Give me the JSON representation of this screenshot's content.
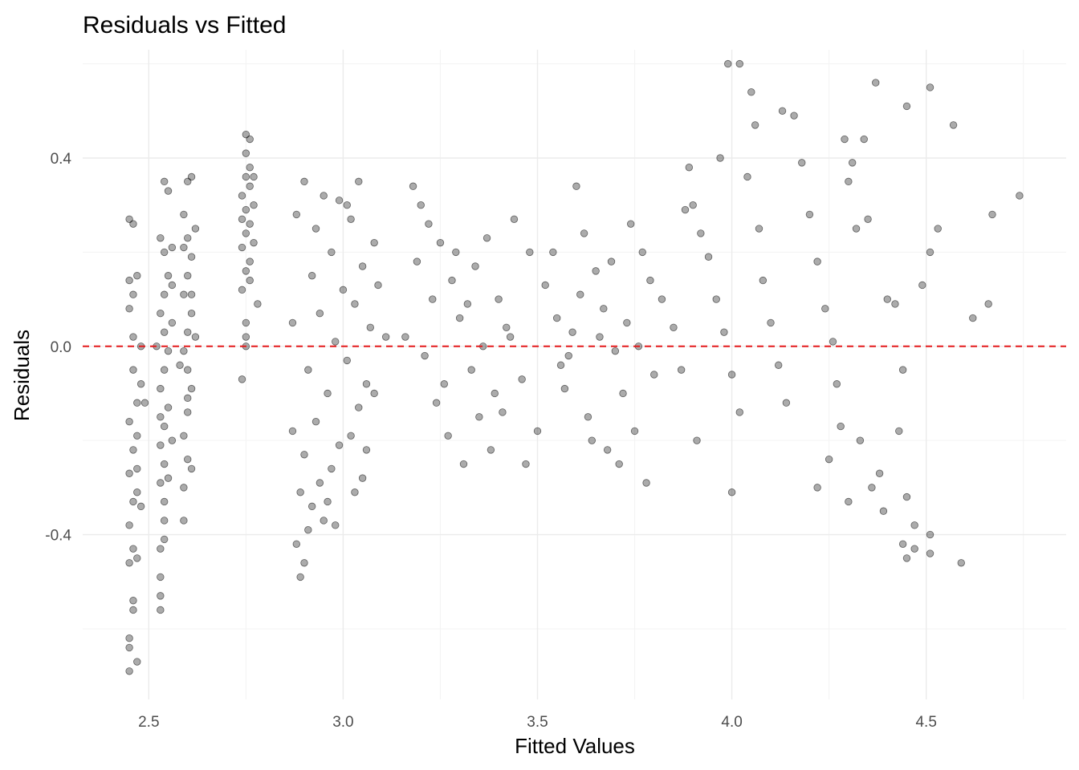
{
  "chart_data": {
    "type": "scatter",
    "title": "Residuals vs Fitted",
    "xlabel": "Fitted Values",
    "ylabel": "Residuals",
    "xlim": [
      2.33,
      4.86
    ],
    "ylim": [
      -0.75,
      0.63
    ],
    "x_ticks": [
      2.5,
      3.0,
      3.5,
      4.0,
      4.5
    ],
    "x_tick_labels": [
      "2.5",
      "3.0",
      "3.5",
      "4.0",
      "4.5"
    ],
    "y_ticks": [
      -0.4,
      0.0,
      0.4
    ],
    "y_tick_labels": [
      "-0.4",
      "0.0",
      "0.4"
    ],
    "grid": true,
    "reference_line": {
      "y": 0,
      "color": "#e41a1c",
      "style": "dashed"
    },
    "point_color": "#000000",
    "point_alpha": 0.33,
    "series": [
      {
        "points": [
          [
            2.45,
            -0.69
          ],
          [
            2.45,
            -0.64
          ],
          [
            2.45,
            -0.62
          ],
          [
            2.46,
            -0.56
          ],
          [
            2.46,
            -0.54
          ],
          [
            2.45,
            -0.46
          ],
          [
            2.46,
            -0.43
          ],
          [
            2.47,
            -0.45
          ],
          [
            2.45,
            -0.38
          ],
          [
            2.46,
            -0.33
          ],
          [
            2.47,
            -0.31
          ],
          [
            2.45,
            -0.27
          ],
          [
            2.46,
            -0.22
          ],
          [
            2.45,
            -0.16
          ],
          [
            2.47,
            -0.12
          ],
          [
            2.46,
            -0.05
          ],
          [
            2.46,
            0.02
          ],
          [
            2.45,
            0.08
          ],
          [
            2.47,
            0.15
          ],
          [
            2.46,
            0.26
          ],
          [
            2.45,
            0.27
          ],
          [
            2.48,
            -0.34
          ],
          [
            2.47,
            -0.67
          ],
          [
            2.48,
            -0.08
          ],
          [
            2.47,
            -0.26
          ],
          [
            2.46,
            0.11
          ],
          [
            2.45,
            0.14
          ],
          [
            2.48,
            0.0
          ],
          [
            2.49,
            -0.12
          ],
          [
            2.47,
            -0.19
          ],
          [
            2.53,
            -0.56
          ],
          [
            2.53,
            -0.53
          ],
          [
            2.53,
            -0.49
          ],
          [
            2.53,
            -0.43
          ],
          [
            2.54,
            -0.41
          ],
          [
            2.54,
            -0.37
          ],
          [
            2.54,
            -0.33
          ],
          [
            2.53,
            -0.29
          ],
          [
            2.54,
            -0.25
          ],
          [
            2.53,
            -0.21
          ],
          [
            2.54,
            -0.17
          ],
          [
            2.55,
            -0.13
          ],
          [
            2.53,
            -0.09
          ],
          [
            2.54,
            -0.05
          ],
          [
            2.55,
            -0.01
          ],
          [
            2.54,
            0.03
          ],
          [
            2.53,
            0.07
          ],
          [
            2.54,
            0.11
          ],
          [
            2.55,
            0.15
          ],
          [
            2.54,
            0.2
          ],
          [
            2.53,
            0.23
          ],
          [
            2.55,
            0.33
          ],
          [
            2.54,
            0.35
          ],
          [
            2.56,
            -0.2
          ],
          [
            2.56,
            0.05
          ],
          [
            2.55,
            -0.28
          ],
          [
            2.52,
            0.0
          ],
          [
            2.56,
            0.13
          ],
          [
            2.53,
            -0.15
          ],
          [
            2.56,
            0.21
          ],
          [
            2.59,
            -0.37
          ],
          [
            2.59,
            -0.3
          ],
          [
            2.6,
            -0.24
          ],
          [
            2.59,
            -0.19
          ],
          [
            2.6,
            -0.14
          ],
          [
            2.61,
            -0.09
          ],
          [
            2.6,
            -0.05
          ],
          [
            2.59,
            -0.01
          ],
          [
            2.6,
            0.03
          ],
          [
            2.61,
            0.07
          ],
          [
            2.59,
            0.11
          ],
          [
            2.6,
            0.15
          ],
          [
            2.61,
            0.19
          ],
          [
            2.6,
            0.23
          ],
          [
            2.59,
            0.28
          ],
          [
            2.6,
            0.35
          ],
          [
            2.61,
            0.36
          ],
          [
            2.61,
            -0.26
          ],
          [
            2.62,
            0.02
          ],
          [
            2.6,
            -0.11
          ],
          [
            2.59,
            0.21
          ],
          [
            2.61,
            0.11
          ],
          [
            2.58,
            -0.04
          ],
          [
            2.62,
            0.25
          ],
          [
            2.74,
            -0.07
          ],
          [
            2.75,
            0.0
          ],
          [
            2.75,
            0.02
          ],
          [
            2.75,
            0.05
          ],
          [
            2.74,
            0.12
          ],
          [
            2.75,
            0.16
          ],
          [
            2.76,
            0.18
          ],
          [
            2.74,
            0.21
          ],
          [
            2.75,
            0.24
          ],
          [
            2.76,
            0.26
          ],
          [
            2.75,
            0.29
          ],
          [
            2.74,
            0.32
          ],
          [
            2.76,
            0.34
          ],
          [
            2.75,
            0.36
          ],
          [
            2.76,
            0.38
          ],
          [
            2.75,
            0.41
          ],
          [
            2.75,
            0.45
          ],
          [
            2.77,
            0.36
          ],
          [
            2.77,
            0.22
          ],
          [
            2.78,
            0.09
          ],
          [
            2.76,
            0.14
          ],
          [
            2.74,
            0.27
          ],
          [
            2.77,
            0.3
          ],
          [
            2.76,
            0.44
          ],
          [
            2.89,
            -0.49
          ],
          [
            2.9,
            -0.46
          ],
          [
            2.88,
            -0.42
          ],
          [
            2.91,
            -0.39
          ],
          [
            2.95,
            -0.37
          ],
          [
            2.92,
            -0.34
          ],
          [
            2.89,
            -0.31
          ],
          [
            2.94,
            -0.29
          ],
          [
            2.97,
            -0.26
          ],
          [
            2.9,
            -0.23
          ],
          [
            2.99,
            -0.21
          ],
          [
            3.02,
            -0.19
          ],
          [
            2.93,
            -0.16
          ],
          [
            3.04,
            -0.13
          ],
          [
            2.96,
            -0.1
          ],
          [
            3.06,
            -0.08
          ],
          [
            2.91,
            -0.05
          ],
          [
            3.01,
            -0.03
          ],
          [
            2.98,
            0.01
          ],
          [
            3.07,
            0.04
          ],
          [
            2.94,
            0.07
          ],
          [
            3.03,
            0.09
          ],
          [
            3.0,
            0.12
          ],
          [
            2.92,
            0.15
          ],
          [
            3.05,
            0.17
          ],
          [
            2.97,
            0.2
          ],
          [
            3.08,
            0.22
          ],
          [
            2.93,
            0.25
          ],
          [
            3.02,
            0.27
          ],
          [
            2.99,
            0.31
          ],
          [
            2.9,
            0.35
          ],
          [
            3.04,
            0.35
          ],
          [
            2.95,
            0.32
          ],
          [
            3.01,
            0.3
          ],
          [
            2.88,
            0.28
          ],
          [
            3.06,
            -0.22
          ],
          [
            2.96,
            -0.33
          ],
          [
            3.03,
            -0.31
          ],
          [
            3.08,
            -0.1
          ],
          [
            3.09,
            0.13
          ],
          [
            3.11,
            0.02
          ],
          [
            2.87,
            0.05
          ],
          [
            2.87,
            -0.18
          ],
          [
            2.98,
            -0.38
          ],
          [
            3.05,
            -0.28
          ],
          [
            3.16,
            0.02
          ],
          [
            3.18,
            0.34
          ],
          [
            3.2,
            0.3
          ],
          [
            3.22,
            0.26
          ],
          [
            3.19,
            0.18
          ],
          [
            3.25,
            0.22
          ],
          [
            3.28,
            0.14
          ],
          [
            3.3,
            0.06
          ],
          [
            3.33,
            -0.05
          ],
          [
            3.35,
            -0.15
          ],
          [
            3.38,
            -0.22
          ],
          [
            3.31,
            -0.25
          ],
          [
            3.27,
            -0.19
          ],
          [
            3.24,
            -0.12
          ],
          [
            3.21,
            -0.02
          ],
          [
            3.23,
            0.1
          ],
          [
            3.29,
            0.2
          ],
          [
            3.34,
            0.17
          ],
          [
            3.4,
            0.1
          ],
          [
            3.43,
            0.02
          ],
          [
            3.46,
            -0.07
          ],
          [
            3.41,
            -0.14
          ],
          [
            3.37,
            0.23
          ],
          [
            3.44,
            0.27
          ],
          [
            3.48,
            0.2
          ],
          [
            3.5,
            -0.18
          ],
          [
            3.47,
            -0.25
          ],
          [
            3.42,
            0.04
          ],
          [
            3.36,
            0.0
          ],
          [
            3.32,
            0.09
          ],
          [
            3.26,
            -0.08
          ],
          [
            3.39,
            -0.1
          ],
          [
            3.52,
            0.13
          ],
          [
            3.55,
            0.06
          ],
          [
            3.58,
            -0.02
          ],
          [
            3.6,
            0.34
          ],
          [
            3.62,
            0.24
          ],
          [
            3.65,
            0.16
          ],
          [
            3.67,
            0.08
          ],
          [
            3.7,
            -0.01
          ],
          [
            3.72,
            -0.1
          ],
          [
            3.75,
            -0.18
          ],
          [
            3.68,
            -0.22
          ],
          [
            3.63,
            -0.15
          ],
          [
            3.57,
            -0.09
          ],
          [
            3.54,
            0.2
          ],
          [
            3.61,
            0.11
          ],
          [
            3.66,
            0.02
          ],
          [
            3.73,
            0.05
          ],
          [
            3.77,
            0.2
          ],
          [
            3.79,
            0.14
          ],
          [
            3.74,
            0.26
          ],
          [
            3.71,
            -0.25
          ],
          [
            3.64,
            -0.2
          ],
          [
            3.59,
            0.03
          ],
          [
            3.69,
            0.18
          ],
          [
            3.78,
            -0.29
          ],
          [
            3.8,
            -0.06
          ],
          [
            3.76,
            0.0
          ],
          [
            3.56,
            -0.04
          ],
          [
            3.82,
            0.1
          ],
          [
            3.85,
            0.04
          ],
          [
            3.87,
            -0.05
          ],
          [
            3.89,
            0.38
          ],
          [
            3.9,
            0.3
          ],
          [
            3.92,
            0.24
          ],
          [
            3.94,
            0.19
          ],
          [
            3.96,
            0.1
          ],
          [
            3.98,
            0.03
          ],
          [
            4.0,
            -0.06
          ],
          [
            4.02,
            -0.14
          ],
          [
            4.0,
            -0.31
          ],
          [
            3.99,
            0.6
          ],
          [
            4.02,
            0.6
          ],
          [
            4.05,
            0.54
          ],
          [
            4.06,
            0.47
          ],
          [
            4.04,
            0.36
          ],
          [
            4.07,
            0.25
          ],
          [
            4.08,
            0.14
          ],
          [
            4.1,
            0.05
          ],
          [
            4.12,
            -0.04
          ],
          [
            4.14,
            -0.12
          ],
          [
            4.16,
            0.49
          ],
          [
            4.18,
            0.39
          ],
          [
            4.2,
            0.28
          ],
          [
            4.22,
            0.18
          ],
          [
            4.24,
            0.08
          ],
          [
            4.26,
            0.01
          ],
          [
            4.27,
            -0.08
          ],
          [
            4.29,
            0.44
          ],
          [
            4.3,
            0.35
          ],
          [
            4.32,
            0.25
          ],
          [
            4.28,
            -0.17
          ],
          [
            4.25,
            -0.24
          ],
          [
            4.22,
            -0.3
          ],
          [
            4.3,
            -0.33
          ],
          [
            4.33,
            -0.2
          ],
          [
            4.35,
            0.27
          ],
          [
            4.36,
            -0.3
          ],
          [
            4.38,
            -0.27
          ],
          [
            4.4,
            0.1
          ],
          [
            4.42,
            0.09
          ],
          [
            4.44,
            -0.05
          ],
          [
            4.45,
            -0.32
          ],
          [
            4.45,
            -0.45
          ],
          [
            4.44,
            -0.42
          ],
          [
            4.45,
            0.51
          ],
          [
            4.47,
            -0.38
          ],
          [
            4.47,
            -0.43
          ],
          [
            4.49,
            0.13
          ],
          [
            4.51,
            0.55
          ],
          [
            4.51,
            0.2
          ],
          [
            4.51,
            -0.4
          ],
          [
            4.51,
            -0.44
          ],
          [
            4.53,
            0.25
          ],
          [
            4.57,
            0.47
          ],
          [
            4.59,
            -0.46
          ],
          [
            4.62,
            0.06
          ],
          [
            4.66,
            0.09
          ],
          [
            4.67,
            0.28
          ],
          [
            4.74,
            0.32
          ],
          [
            4.37,
            0.56
          ],
          [
            4.34,
            0.44
          ],
          [
            4.31,
            0.39
          ],
          [
            4.43,
            -0.18
          ],
          [
            4.39,
            -0.35
          ],
          [
            3.97,
            0.4
          ],
          [
            4.13,
            0.5
          ],
          [
            3.91,
            -0.2
          ],
          [
            3.88,
            0.29
          ]
        ]
      }
    ]
  }
}
